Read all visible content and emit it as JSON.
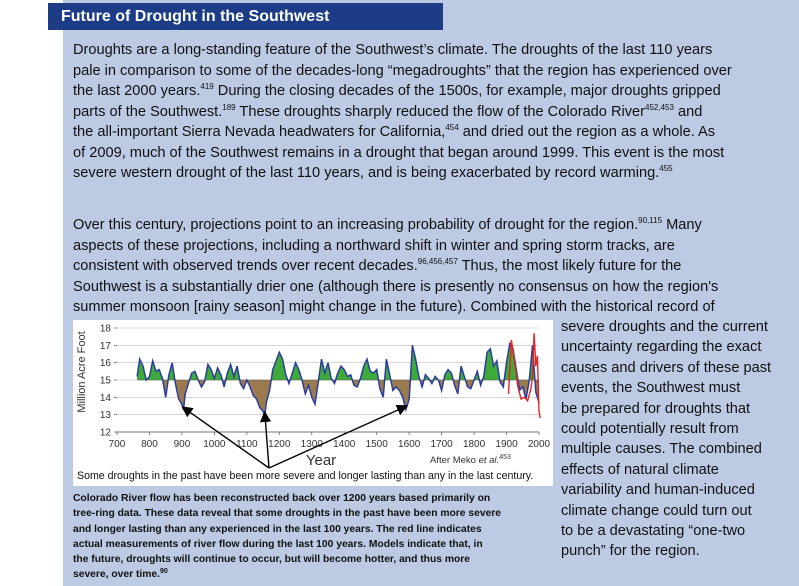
{
  "title": "Future of Drought in the Southwest",
  "para1": {
    "l1": "Droughts are a long-standing feature of the Southwest’s climate. The droughts of the last 110 years",
    "l2": "pale in comparison to some of the decades-long “megadroughts” that the region has experienced over",
    "l3a": "the last 2000 years.",
    "r419": "419",
    "l3b": " During the closing decades of the 1500s, for example, major droughts gripped",
    "l4a": "parts of the Southwest.",
    "r189": "189",
    "l4b": " These droughts sharply reduced the flow of the Colorado River",
    "r452": "452,453",
    "l4c": " and",
    "l5a": "the all-important Sierra Nevada headwaters for California,",
    "r454": "454",
    "l5b": " and dried out the region as a whole. As",
    "l6": "of 2009, much of the Southwest remains in a drought that began around 1999. This event is the most",
    "l7a": "severe western drought of the last 110 years, and is being exacerbated by record warming.",
    "r455": "455"
  },
  "para2": {
    "l1a": "Over this century, projections point to an increasing probability of drought for the region.",
    "r90": "90,115",
    "l1b": " Many",
    "l2": "aspects of these projections, including a northward shift in winter and spring storm tracks, are",
    "l3a": "consistent with observed trends over recent decades.",
    "r96": "96,456,457",
    "l3b": " Thus, the most likely future for the",
    "l4": "Southwest is a substantially drier one (although there is presently no consensus on how the region's",
    "l5": "summer monsoon [rainy season] might change in the future). Combined with the historical record of"
  },
  "side_text": [
    "severe droughts and the current",
    "uncertainty regarding the exact",
    "causes and drivers of these past",
    "events, the Southwest must",
    "be prepared for droughts that",
    "could potentially result from",
    "multiple causes. The combined",
    "effects of natural climate",
    "variability and human-induced",
    "climate change could turn out",
    "to be a devastating “one-two",
    "punch” for the region."
  ],
  "chart": {
    "ylabel": "Million Acre Foot",
    "xlabel": "Year",
    "source": "After Meko ",
    "source_italic": "et al.",
    "source_ref": "453",
    "annotation": "Some droughts in the past have been more severe and longer lasting than any in the last century."
  },
  "chart_data": {
    "type": "area",
    "xlabel": "Year",
    "ylabel": "Million Acre Foot",
    "xlim": [
      700,
      2000
    ],
    "ylim": [
      12,
      18
    ],
    "x_ticks": [
      "700",
      "800",
      "900",
      "1000",
      "1100",
      "1200",
      "1300",
      "1400",
      "1500",
      "1600",
      "1700",
      "1800",
      "1900",
      "2000"
    ],
    "y_ticks": [
      "12",
      "13",
      "14",
      "15",
      "16",
      "17",
      "18"
    ],
    "mean": 15,
    "arrow_targets": [
      900,
      1150,
      1590
    ],
    "series": [
      {
        "name": "",
        "x": [
          762,
          770,
          780,
          790,
          800,
          810,
          820,
          830,
          840,
          850,
          860,
          870,
          880,
          890,
          900,
          905,
          910,
          920,
          930,
          940,
          950,
          960,
          970,
          980,
          990,
          1000,
          1010,
          1020,
          1030,
          1040,
          1050,
          1060,
          1070,
          1080,
          1090,
          1100,
          1110,
          1120,
          1130,
          1140,
          1150,
          1155,
          1160,
          1170,
          1180,
          1190,
          1200,
          1210,
          1220,
          1230,
          1240,
          1250,
          1260,
          1270,
          1280,
          1290,
          1300,
          1310,
          1320,
          1330,
          1340,
          1350,
          1360,
          1370,
          1380,
          1390,
          1400,
          1410,
          1420,
          1430,
          1440,
          1450,
          1460,
          1470,
          1480,
          1490,
          1500,
          1510,
          1520,
          1530,
          1540,
          1550,
          1560,
          1570,
          1580,
          1590,
          1600,
          1610,
          1620,
          1630,
          1640,
          1650,
          1660,
          1670,
          1680,
          1690,
          1700,
          1710,
          1720,
          1730,
          1740,
          1750,
          1760,
          1770,
          1780,
          1790,
          1800,
          1810,
          1820,
          1830,
          1840,
          1850,
          1860,
          1870,
          1880,
          1890,
          1900,
          1910,
          1920,
          1930,
          1940,
          1950,
          1960,
          1970,
          1980,
          1990,
          2000
        ],
        "values": [
          15.2,
          16.2,
          15.8,
          15.0,
          15.2,
          16.1,
          15.5,
          15.6,
          15.1,
          14.0,
          15.3,
          16.0,
          14.8,
          13.9,
          13.6,
          13.3,
          14.2,
          14.8,
          15.4,
          15.5,
          15.0,
          14.6,
          14.9,
          15.9,
          15.6,
          15.1,
          15.7,
          15.3,
          14.6,
          15.4,
          15.9,
          15.2,
          15.8,
          14.8,
          14.5,
          15.0,
          14.6,
          14.1,
          13.9,
          13.4,
          13.2,
          12.9,
          13.7,
          14.4,
          15.6,
          16.1,
          16.6,
          16.2,
          15.3,
          14.8,
          15.4,
          16.0,
          15.6,
          15.0,
          14.2,
          14.7,
          14.0,
          13.6,
          14.9,
          16.2,
          15.4,
          16.0,
          15.1,
          14.8,
          15.4,
          15.8,
          15.6,
          15.2,
          15.3,
          14.7,
          14.6,
          15.1,
          15.8,
          16.2,
          15.5,
          15.4,
          15.6,
          14.5,
          14.0,
          16.2,
          15.3,
          14.4,
          14.6,
          14.4,
          14.0,
          13.3,
          13.9,
          17.0,
          16.2,
          15.2,
          14.6,
          15.3,
          15.1,
          14.8,
          15.2,
          15.0,
          14.4,
          15.3,
          15.6,
          15.4,
          14.7,
          14.2,
          15.8,
          15.2,
          14.6,
          14.5,
          15.0,
          15.5,
          14.7,
          15.2,
          16.6,
          16.8,
          15.8,
          16.1,
          14.9,
          14.6,
          16.0,
          17.1,
          16.8,
          15.6,
          14.4,
          14.6,
          13.9,
          15.0,
          17.0,
          14.3,
          13.7
        ]
      },
      {
        "name": "",
        "x": [
          1906,
          1915,
          1925,
          1935,
          1945,
          1955,
          1965,
          1975,
          1980,
          1985,
          1990,
          1995,
          2000,
          2004
        ],
        "values": [
          14.2,
          17.3,
          16.0,
          14.6,
          13.9,
          14.0,
          13.8,
          14.5,
          15.2,
          17.7,
          15.8,
          16.4,
          13.2,
          12.8
        ]
      }
    ]
  },
  "caption": [
    "Colorado River flow has been reconstructed back over 1200 years based primarily on",
    "tree-ring data. These data reveal that some droughts in the past have been more severe",
    "and longer lasting than any experienced in the last 100 years. The red line indicates",
    "actual measurements of river flow during the last 100 years. Models indicate that, in",
    "the future, droughts will continue to occur, but will become hotter, and thus more"
  ],
  "caption_last": "severe, over time.",
  "caption_ref": "90",
  "colors": {
    "panel": "#bccae3",
    "title_bar": "#1c3d85",
    "wet": "#3daa3a",
    "dry": "#9b7b4e",
    "line": "#2b3d9e",
    "observed": "#e8231f"
  }
}
